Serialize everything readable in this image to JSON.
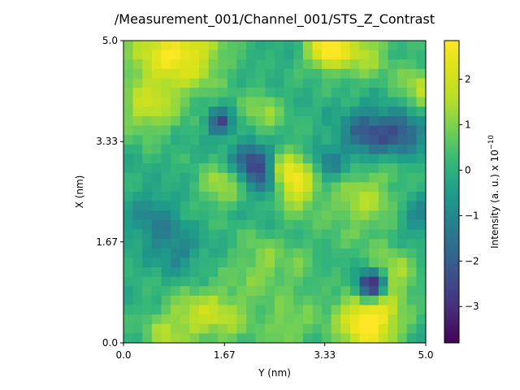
{
  "chart_data": {
    "type": "heatmap",
    "title": "/Measurement_001/Channel_001/STS_Z_Contrast",
    "xlabel": "Y (nm)",
    "ylabel": "X (nm)",
    "xlim": [
      0,
      5.0
    ],
    "ylim": [
      0,
      5.0
    ],
    "x_ticks": [
      0.0,
      1.67,
      3.33,
      5.0
    ],
    "x_tick_labels": [
      "0.0",
      "1.67",
      "3.33",
      "5.0"
    ],
    "y_ticks": [
      0.0,
      1.67,
      3.33,
      5.0
    ],
    "y_tick_labels": [
      "0.0",
      "1.67",
      "3.33",
      "5.0"
    ],
    "colormap": "viridis",
    "grid": false,
    "colorbar": {
      "label": "Intensity (a. u.) x 10",
      "label_exponent": "−10",
      "vmin": -3.8,
      "vmax": 2.85,
      "ticks": [
        -3,
        -2,
        -1,
        0,
        1,
        2
      ],
      "tick_labels": [
        "−3",
        "−2",
        "−1",
        "0",
        "1",
        "2"
      ]
    },
    "grid_size": 32,
    "features": [
      {
        "x": 1.0,
        "y": 4.8,
        "sigma": 0.45,
        "value": 2.4
      },
      {
        "x": 3.35,
        "y": 4.85,
        "sigma": 0.22,
        "value": 2.6
      },
      {
        "x": 3.9,
        "y": 4.85,
        "sigma": 0.35,
        "value": 1.6
      },
      {
        "x": 0.4,
        "y": 4.9,
        "sigma": 0.4,
        "value": 0.8
      },
      {
        "x": 2.8,
        "y": 2.7,
        "sigma": 0.3,
        "value": 3.2
      },
      {
        "x": 4.05,
        "y": 0.35,
        "sigma": 0.35,
        "value": 3.3
      },
      {
        "x": 0.4,
        "y": 3.9,
        "sigma": 0.35,
        "value": 1.6
      },
      {
        "x": 1.6,
        "y": 2.6,
        "sigma": 0.25,
        "value": 1.4
      },
      {
        "x": 3.95,
        "y": 2.4,
        "sigma": 0.45,
        "value": 1.4
      },
      {
        "x": 4.4,
        "y": 1.1,
        "sigma": 0.3,
        "value": 1.6
      },
      {
        "x": 2.3,
        "y": 3.8,
        "sigma": 0.25,
        "value": 1.2
      },
      {
        "x": 4.95,
        "y": 4.2,
        "sigma": 0.3,
        "value": 1.5
      },
      {
        "x": 1.2,
        "y": 0.5,
        "sigma": 0.3,
        "value": 1.1
      },
      {
        "x": 0.7,
        "y": 0.15,
        "sigma": 0.3,
        "value": 1.2
      },
      {
        "x": 3.2,
        "y": 1.2,
        "sigma": 0.3,
        "value": 1.0
      },
      {
        "x": 2.3,
        "y": 1.3,
        "sigma": 0.35,
        "value": 1.1
      },
      {
        "x": 1.7,
        "y": 0.45,
        "sigma": 0.35,
        "value": 1.2
      },
      {
        "x": 2.75,
        "y": 0.3,
        "sigma": 0.3,
        "value": 1.1
      },
      {
        "x": 4.1,
        "y": 0.95,
        "sigma": 0.18,
        "value": -4.8
      },
      {
        "x": 1.6,
        "y": 3.65,
        "sigma": 0.15,
        "value": -2.5
      },
      {
        "x": 2.15,
        "y": 3.0,
        "sigma": 0.22,
        "value": -2.8
      },
      {
        "x": 2.4,
        "y": 2.6,
        "sigma": 0.2,
        "value": -2.0
      },
      {
        "x": 4.05,
        "y": 3.45,
        "sigma": 0.3,
        "value": -2.2
      },
      {
        "x": 4.65,
        "y": 3.5,
        "sigma": 0.25,
        "value": -2.0
      },
      {
        "x": 3.35,
        "y": 2.9,
        "sigma": 0.25,
        "value": -1.6
      },
      {
        "x": 0.5,
        "y": 2.0,
        "sigma": 0.3,
        "value": -1.2
      },
      {
        "x": 4.9,
        "y": 2.1,
        "sigma": 0.25,
        "value": -1.1
      },
      {
        "x": 3.3,
        "y": 1.2,
        "sigma": 0.2,
        "value": -1.0
      },
      {
        "x": 0.9,
        "y": 1.5,
        "sigma": 0.25,
        "value": -1.0
      }
    ]
  }
}
